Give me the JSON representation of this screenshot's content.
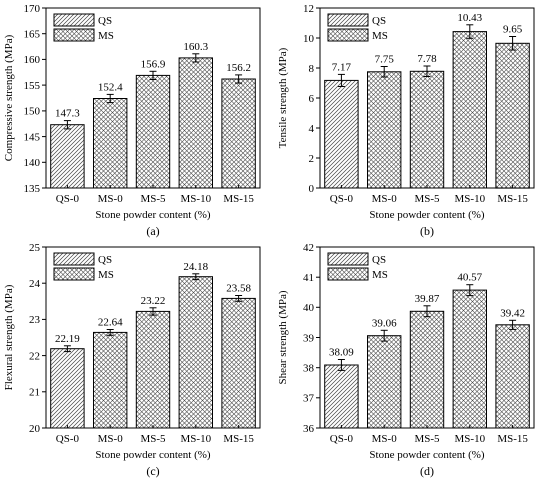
{
  "patterns": {
    "QS": "diagonal-hatch",
    "MS": "cross-hatch"
  },
  "chart_data": [
    {
      "type": "bar",
      "panel_label": "(a)",
      "categories": [
        "QS-0",
        "MS-0",
        "MS-5",
        "MS-10",
        "MS-15"
      ],
      "values": [
        147.3,
        152.4,
        156.9,
        160.3,
        156.2
      ],
      "value_labels": [
        "147.3",
        "152.4",
        "156.9",
        "160.3",
        "156.2"
      ],
      "errors": [
        0.8,
        0.8,
        0.8,
        0.8,
        0.8
      ],
      "groups": [
        "QS",
        "MS",
        "MS",
        "MS",
        "MS"
      ],
      "legend": [
        "QS",
        "MS"
      ],
      "legend_position": "top-left",
      "xlabel": "Stone powder content (%)",
      "ylabel": "Compressive strength (MPa)",
      "ylim": [
        135,
        170
      ],
      "yticks": [
        135,
        140,
        145,
        150,
        155,
        160,
        165,
        170
      ]
    },
    {
      "type": "bar",
      "panel_label": "(b)",
      "categories": [
        "QS-0",
        "MS-0",
        "MS-5",
        "MS-10",
        "MS-15"
      ],
      "values": [
        7.17,
        7.75,
        7.78,
        10.43,
        9.65
      ],
      "value_labels": [
        "7.17",
        "7.75",
        "7.78",
        "10.43",
        "9.65"
      ],
      "errors": [
        0.4,
        0.35,
        0.35,
        0.45,
        0.45
      ],
      "groups": [
        "QS",
        "MS",
        "MS",
        "MS",
        "MS"
      ],
      "legend": [
        "QS",
        "MS"
      ],
      "legend_position": "top-left",
      "xlabel": "Stone powder content (%)",
      "ylabel": "Tensile strength (MPa)",
      "ylim": [
        0,
        12
      ],
      "yticks": [
        0,
        2,
        4,
        6,
        8,
        10,
        12
      ]
    },
    {
      "type": "bar",
      "panel_label": "(c)",
      "categories": [
        "QS-0",
        "MS-0",
        "MS-5",
        "MS-10",
        "MS-15"
      ],
      "values": [
        22.19,
        22.64,
        23.22,
        24.18,
        23.58
      ],
      "value_labels": [
        "22.19",
        "22.64",
        "23.22",
        "24.18",
        "23.58"
      ],
      "errors": [
        0.08,
        0.08,
        0.1,
        0.08,
        0.08
      ],
      "groups": [
        "QS",
        "MS",
        "MS",
        "MS",
        "MS"
      ],
      "legend": [
        "QS",
        "MS"
      ],
      "legend_position": "top-left",
      "xlabel": "Stone powder content (%)",
      "ylabel": "Flexural strength (MPa)",
      "ylim": [
        20,
        25
      ],
      "yticks": [
        20,
        21,
        22,
        23,
        24,
        25
      ]
    },
    {
      "type": "bar",
      "panel_label": "(d)",
      "categories": [
        "QS-0",
        "MS-0",
        "MS-5",
        "MS-10",
        "MS-15"
      ],
      "values": [
        38.09,
        39.06,
        39.87,
        40.57,
        39.42
      ],
      "value_labels": [
        "38.09",
        "39.06",
        "39.87",
        "40.57",
        "39.42"
      ],
      "errors": [
        0.18,
        0.18,
        0.18,
        0.18,
        0.15
      ],
      "groups": [
        "QS",
        "MS",
        "MS",
        "MS",
        "MS"
      ],
      "legend": [
        "QS",
        "MS"
      ],
      "legend_position": "top-left",
      "xlabel": "Stone powder content (%)",
      "ylabel": "Shear strength (MPa)",
      "ylim": [
        36,
        42
      ],
      "yticks": [
        36,
        37,
        38,
        39,
        40,
        41,
        42
      ]
    }
  ]
}
